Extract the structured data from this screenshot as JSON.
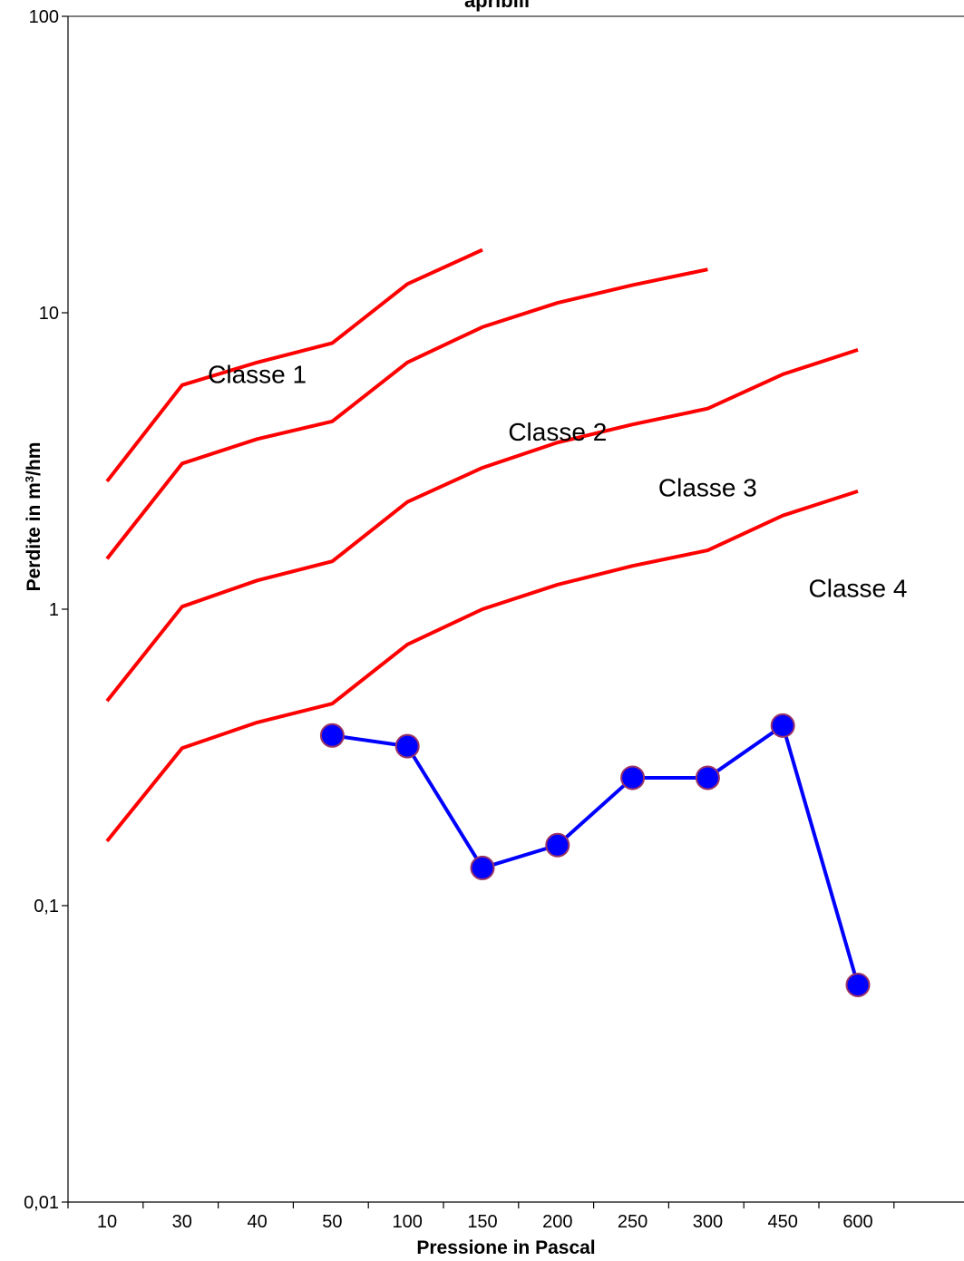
{
  "chart_data": {
    "type": "line",
    "title": "apribili",
    "xlabel": "Pressione in Pascal",
    "ylabel": {
      "prefix": "Perdite in m",
      "sup": "3",
      "suffix": "/hm"
    },
    "y_scale": "log",
    "ylim": [
      0.01,
      100
    ],
    "y_ticks": [
      {
        "value": 100,
        "label": "100"
      },
      {
        "value": 10,
        "label": "10"
      },
      {
        "value": 1,
        "label": "1"
      },
      {
        "value": 0.1,
        "label": "0,1"
      },
      {
        "value": 0.01,
        "label": "0,01"
      }
    ],
    "categories": [
      "10",
      "30",
      "40",
      "50",
      "100",
      "150",
      "200",
      "250",
      "300",
      "450",
      "600"
    ],
    "grid": false,
    "legend": "none",
    "series": [
      {
        "name": "Classe 1",
        "color": "#ff0000",
        "marker": "none",
        "values": [
          2.7,
          5.7,
          6.8,
          7.9,
          12.5,
          16.3,
          null,
          null,
          null,
          null,
          null
        ]
      },
      {
        "name": "Classe 2",
        "color": "#ff0000",
        "marker": "none",
        "values": [
          1.48,
          3.1,
          3.75,
          4.3,
          6.8,
          8.95,
          10.8,
          12.4,
          14.0,
          null,
          null
        ]
      },
      {
        "name": "Classe 3",
        "color": "#ff0000",
        "marker": "none",
        "values": [
          0.49,
          1.02,
          1.25,
          1.45,
          2.3,
          3.0,
          3.65,
          4.2,
          4.75,
          6.2,
          7.5
        ]
      },
      {
        "name": "",
        "color": "#ff0000",
        "marker": "none",
        "values": [
          0.165,
          0.34,
          0.415,
          0.48,
          0.76,
          1.0,
          1.21,
          1.4,
          1.58,
          2.07,
          2.5
        ]
      },
      {
        "name": "",
        "color": "#0000ff",
        "marker": "circle",
        "marker_fill": "#0000ff",
        "marker_edge": "#993366",
        "values": [
          null,
          null,
          null,
          0.375,
          0.345,
          0.134,
          0.16,
          0.27,
          0.27,
          0.405,
          0.054
        ]
      }
    ],
    "annotations": [
      {
        "text": "Classe 1",
        "x": "40",
        "y": 5.8
      },
      {
        "text": "Classe 2",
        "x": "200",
        "y": 3.7
      },
      {
        "text": "Classe 3",
        "x": "300",
        "y": 2.4
      },
      {
        "text": "Classe 4",
        "x": "600",
        "y": 1.1
      }
    ]
  }
}
